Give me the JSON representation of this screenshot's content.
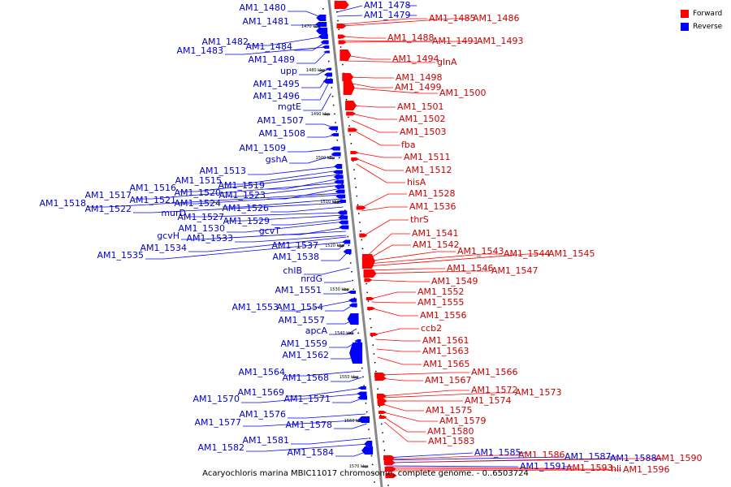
{
  "caption": "Acaryochloris marina MBIC11017 chromosome, complete genome. - 0..6503724",
  "legend": {
    "forward_label": "Forward",
    "reverse_label": "Reverse",
    "forward_color": "#ff0000",
    "reverse_color": "#0000ff"
  },
  "colors": {
    "backbone": "#888888",
    "tick": "#000000"
  },
  "kbp_ticks": [
    "1470 kbp",
    "1480 kbp",
    "1490 kbp",
    "1500 kbp",
    "1510 kbp",
    "1520 kbp",
    "1530 kbp",
    "1540 kbp",
    "1550 kbp",
    "1560 kbp",
    "1570 kbp"
  ],
  "reverse_labels": [
    "AM1_1480",
    "AM1_1481",
    "AM1_1482",
    "AM1_1484",
    "AM1_1483",
    "AM1_1489",
    "upp",
    "AM1_1495",
    "AM1_1496",
    "mgtE",
    "AM1_1507",
    "AM1_1508",
    "AM1_1509",
    "gshA",
    "AM1_1513",
    "AM1_1515",
    "AM1_1516",
    "AM1_1519",
    "AM1_1517",
    "AM1_1520",
    "AM1_1523",
    "AM1_1518",
    "AM1_1521",
    "AM1_1524",
    "AM1_1522",
    "AM1_1526",
    "murD",
    "AM1_1527",
    "AM1_1529",
    "AM1_1530",
    "gcvT",
    "gcvH",
    "AM1_1533",
    "AM1_1534",
    "AM1_1537",
    "AM1_1535",
    "AM1_1538",
    "chlB",
    "nrdG",
    "AM1_1551",
    "AM1_1553",
    "AM1_1554",
    "AM1_1557",
    "apcA",
    "AM1_1559",
    "AM1_1562",
    "AM1_1564",
    "AM1_1568",
    "AM1_1569",
    "AM1_1570",
    "AM1_1571",
    "AM1_1576",
    "AM1_1577",
    "AM1_1578",
    "AM1_1581",
    "AM1_1582",
    "AM1_1584",
    "AM1_1478",
    "AM1_1479",
    "AM1_1585",
    "AM1_1587",
    "AM1_1588",
    "AM1_1591"
  ],
  "forward_labels": [
    "AM1_1485",
    "AM1_1486",
    "AM1_1488",
    "AM1_1491",
    "AM1_1493",
    "AM1_1494",
    "glnA",
    "AM1_1498",
    "AM1_1499",
    "AM1_1500",
    "AM1_1501",
    "AM1_1502",
    "AM1_1503",
    "fba",
    "AM1_1511",
    "AM1_1512",
    "hisA",
    "AM1_1528",
    "AM1_1536",
    "thrS",
    "AM1_1541",
    "AM1_1542",
    "AM1_1543",
    "AM1_1544",
    "AM1_1545",
    "AM1_1546",
    "AM1_1547",
    "AM1_1549",
    "AM1_1552",
    "AM1_1555",
    "AM1_1556",
    "ccb2",
    "AM1_1561",
    "AM1_1563",
    "AM1_1565",
    "AM1_1566",
    "AM1_1567",
    "AM1_1572",
    "AM1_1573",
    "AM1_1574",
    "AM1_1575",
    "AM1_1579",
    "AM1_1580",
    "AM1_1583",
    "AM1_1586",
    "AM1_1590",
    "AM1_1593",
    "hli",
    "AM1_1596"
  ]
}
